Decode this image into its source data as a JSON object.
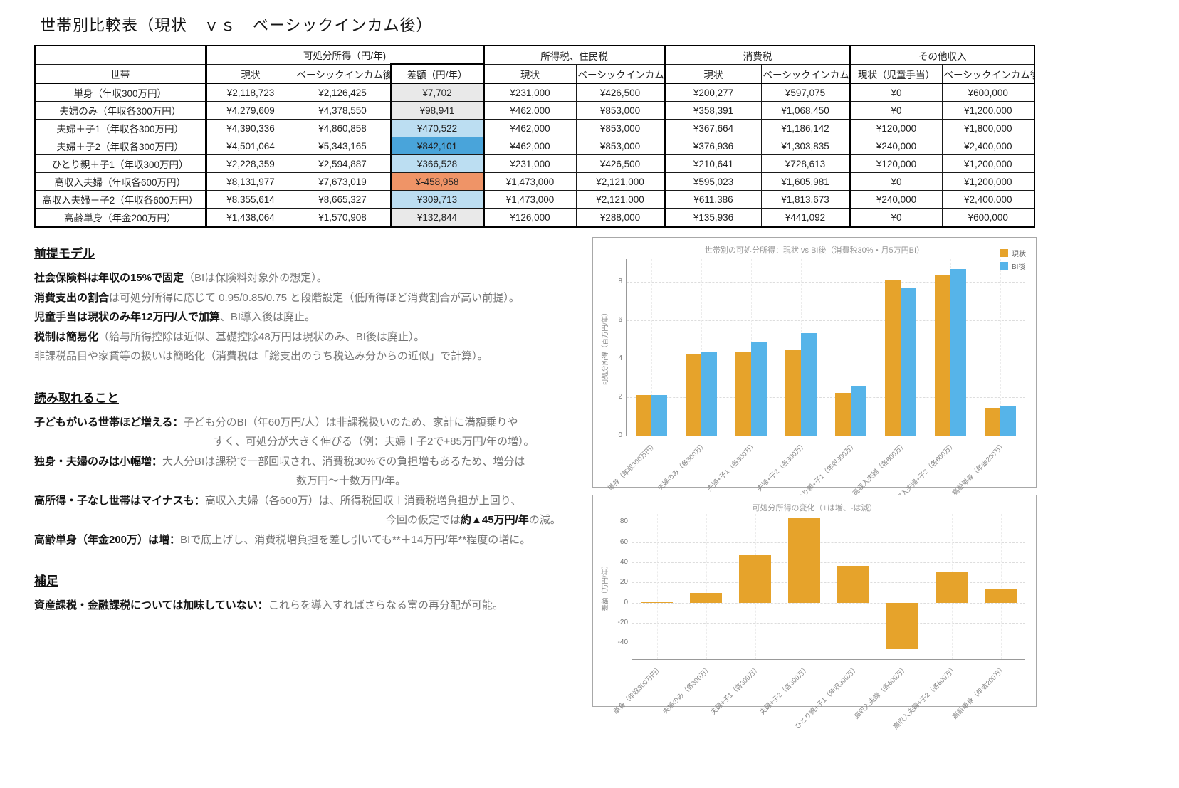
{
  "title": "世帯別比較表（現状　ｖｓ　ベーシックインカム後）",
  "colors": {
    "accent_orange": "#E6A32B",
    "accent_blue": "#56B4E9",
    "diff_gray": "#E9E9E9",
    "diff_lightblue": "#BCDEF2",
    "diff_blue": "#49A4DA",
    "diff_orange": "#EF9467"
  },
  "table": {
    "groups": [
      "可処分所得（円/年)",
      "所得税、住民税",
      "消費税",
      "その他収入"
    ],
    "col_headers": [
      "世帯",
      "現状",
      "ベーシックインカム後",
      "差額（円/年）",
      "現状",
      "ベーシックインカム後",
      "現状",
      "ベーシックインカム後",
      "現状（児童手当）",
      "ベーシックインカム後"
    ],
    "rows": [
      {
        "label": "単身（年収300万円）",
        "values": [
          "¥2,118,723",
          "¥2,126,425",
          "¥7,702",
          "¥231,000",
          "¥426,500",
          "¥200,277",
          "¥597,075",
          "¥0",
          "¥600,000"
        ],
        "diff": "gray"
      },
      {
        "label": "夫婦のみ（年収各300万円）",
        "values": [
          "¥4,279,609",
          "¥4,378,550",
          "¥98,941",
          "¥462,000",
          "¥853,000",
          "¥358,391",
          "¥1,068,450",
          "¥0",
          "¥1,200,000"
        ],
        "diff": "gray"
      },
      {
        "label": "夫婦＋子1（年収各300万円）",
        "values": [
          "¥4,390,336",
          "¥4,860,858",
          "¥470,522",
          "¥462,000",
          "¥853,000",
          "¥367,664",
          "¥1,186,142",
          "¥120,000",
          "¥1,800,000"
        ],
        "diff": "lightblue"
      },
      {
        "label": "夫婦＋子2（年収各300万円）",
        "values": [
          "¥4,501,064",
          "¥5,343,165",
          "¥842,101",
          "¥462,000",
          "¥853,000",
          "¥376,936",
          "¥1,303,835",
          "¥240,000",
          "¥2,400,000"
        ],
        "diff": "blue"
      },
      {
        "label": "ひとり親＋子1（年収300万円）",
        "values": [
          "¥2,228,359",
          "¥2,594,887",
          "¥366,528",
          "¥231,000",
          "¥426,500",
          "¥210,641",
          "¥728,613",
          "¥120,000",
          "¥1,200,000"
        ],
        "diff": "lightblue"
      },
      {
        "label": "高収入夫婦（年収各600万円）",
        "values": [
          "¥8,131,977",
          "¥7,673,019",
          "¥-458,958",
          "¥1,473,000",
          "¥2,121,000",
          "¥595,023",
          "¥1,605,981",
          "¥0",
          "¥1,200,000"
        ],
        "diff": "orange"
      },
      {
        "label": "高収入夫婦＋子2（年収各600万円）",
        "values": [
          "¥8,355,614",
          "¥8,665,327",
          "¥309,713",
          "¥1,473,000",
          "¥2,121,000",
          "¥611,386",
          "¥1,813,673",
          "¥240,000",
          "¥2,400,000"
        ],
        "diff": "lightblue"
      },
      {
        "label": "高齢単身（年金200万円）",
        "values": [
          "¥1,438,064",
          "¥1,570,908",
          "¥132,844",
          "¥126,000",
          "¥288,000",
          "¥135,936",
          "¥441,092",
          "¥0",
          "¥600,000"
        ],
        "diff": "gray"
      }
    ]
  },
  "notes": {
    "sections": [
      {
        "heading": "前提モデル",
        "items": [
          {
            "lines": [
              {
                "indent": 0,
                "segs": [
                  {
                    "t": "社会保険料は年収の15%で固定",
                    "b": true
                  },
                  {
                    "t": "（BIは保険料対象外の想定）。",
                    "b": false
                  }
                ]
              }
            ]
          },
          {
            "lines": [
              {
                "indent": 0,
                "segs": [
                  {
                    "t": "消費支出の割合",
                    "b": true
                  },
                  {
                    "t": "は可処分所得に応じて 0.95/0.85/0.75 と段階設定（低所得ほど消費割合が高い前提）。",
                    "b": false
                  }
                ]
              }
            ]
          },
          {
            "lines": [
              {
                "indent": 0,
                "segs": [
                  {
                    "t": "児童手当は現状のみ年12万円/人で加算",
                    "b": true
                  },
                  {
                    "t": "、BI導入後は廃止。",
                    "b": false
                  }
                ]
              }
            ]
          },
          {
            "lines": [
              {
                "indent": 0,
                "segs": [
                  {
                    "t": "税制は簡易化",
                    "b": true
                  },
                  {
                    "t": "（給与所得控除は近似、基礎控除48万円は現状のみ、BI後は廃止）。",
                    "b": false
                  }
                ]
              }
            ]
          },
          {
            "lines": [
              {
                "indent": 0,
                "segs": [
                  {
                    "t": "非課税品目や家賃等の扱いは簡略化（消費税は「総支出のうち税込み分からの近似」で計算）。",
                    "b": false
                  }
                ]
              }
            ]
          }
        ]
      },
      {
        "heading": "読み取れること",
        "items": [
          {
            "lines": [
              {
                "indent": 0,
                "segs": [
                  {
                    "t": "子どもがいる世帯ほど増える：",
                    "b": true
                  },
                  {
                    "t": "子ども分のBI（年60万円/人）は非課税扱いのため、家計に満額乗りや",
                    "b": false
                  }
                ]
              },
              {
                "indent": 252,
                "segs": [
                  {
                    "t": "すく、可処分が大きく伸びる（例：夫婦＋子2で+85万円/年の増）。",
                    "b": false
                  }
                ]
              }
            ]
          },
          {
            "lines": [
              {
                "indent": 0,
                "segs": [
                  {
                    "t": "独身・夫婦のみは小幅増：",
                    "b": true
                  },
                  {
                    "t": "大人分BIは課税で一部回収され、消費税30%での負担増もあるため、増分は",
                    "b": false
                  }
                ]
              },
              {
                "indent": 368,
                "segs": [
                  {
                    "t": "数万円～十数万円/年。",
                    "b": false
                  }
                ]
              }
            ]
          },
          {
            "lines": [
              {
                "indent": 0,
                "segs": [
                  {
                    "t": "高所得・子なし世帯はマイナスも：",
                    "b": true
                  },
                  {
                    "t": "高収入夫婦（各600万）は、所得税回収＋消費税増負担が上回り、",
                    "b": false
                  }
                ]
              },
              {
                "indent": 494,
                "segs": [
                  {
                    "t": "今回の仮定では",
                    "b": false
                  },
                  {
                    "t": "約▲45万円/年",
                    "b": true
                  },
                  {
                    "t": "の減。",
                    "b": false
                  }
                ]
              }
            ]
          },
          {
            "lines": [
              {
                "indent": 0,
                "segs": [
                  {
                    "t": "高齢単身（年金200万）は増：",
                    "b": true
                  },
                  {
                    "t": "BIで底上げし、消費税増負担を差し引いても**＋14万円/年**程度の増に。",
                    "b": false
                  }
                ]
              }
            ]
          }
        ]
      },
      {
        "heading": "補足",
        "items": [
          {
            "lines": [
              {
                "indent": 0,
                "segs": [
                  {
                    "t": "資産課税・金融課税については加味していない：",
                    "b": true
                  },
                  {
                    "t": "これらを導入すればさらなる富の再分配が可能。",
                    "b": false
                  }
                ]
              }
            ]
          }
        ]
      }
    ]
  },
  "chart_data": [
    {
      "type": "bar",
      "title": "世帯別の可処分所得：現状 vs BI後（消費税30%・月5万円BI）",
      "categories": [
        "単身（年収300万円）",
        "夫婦のみ（各300万）",
        "夫婦+子1（各300万）",
        "夫婦+子2（各300万）",
        "ひとり親+子1（年収300万）",
        "高収入夫婦（各600万）",
        "高収入夫婦+子2（各600万）",
        "高齢単身（年金200万）"
      ],
      "series": [
        {
          "name": "現状",
          "color": "#E6A32B",
          "values": [
            2.12,
            4.28,
            4.39,
            4.5,
            2.23,
            8.13,
            8.36,
            1.44
          ]
        },
        {
          "name": "BI後",
          "color": "#56B4E9",
          "values": [
            2.13,
            4.38,
            4.86,
            5.34,
            2.59,
            7.67,
            8.67,
            1.57
          ]
        }
      ],
      "xlabel": "",
      "ylabel": "可処分所得（百万円/年）",
      "yticks": [
        0,
        2,
        4,
        6,
        8
      ],
      "ylim": [
        0,
        9.2
      ],
      "grid": true,
      "legend_position": "top-right"
    },
    {
      "type": "bar",
      "title": "可処分所得の変化（+は増、-は減）",
      "categories": [
        "単身（年収300万円）",
        "夫婦のみ（各300万）",
        "夫婦+子1（各300万）",
        "夫婦+子2（各300万）",
        "ひとり親+子1（年収300万）",
        "高収入夫婦（各600万）",
        "高収入夫婦+子2（各600万）",
        "高齢単身（年金200万）"
      ],
      "series": [
        {
          "name": "差額",
          "color": "#E6A32B",
          "values": [
            0.8,
            9.9,
            47.1,
            84.2,
            36.7,
            -45.9,
            31,
            13.3
          ]
        }
      ],
      "xlabel": "",
      "ylabel": "差額（万円/年）",
      "yticks": [
        80,
        60,
        40,
        20,
        0,
        -20,
        -40
      ],
      "ylim": [
        -56,
        88
      ],
      "grid": true,
      "legend_position": "none"
    }
  ]
}
